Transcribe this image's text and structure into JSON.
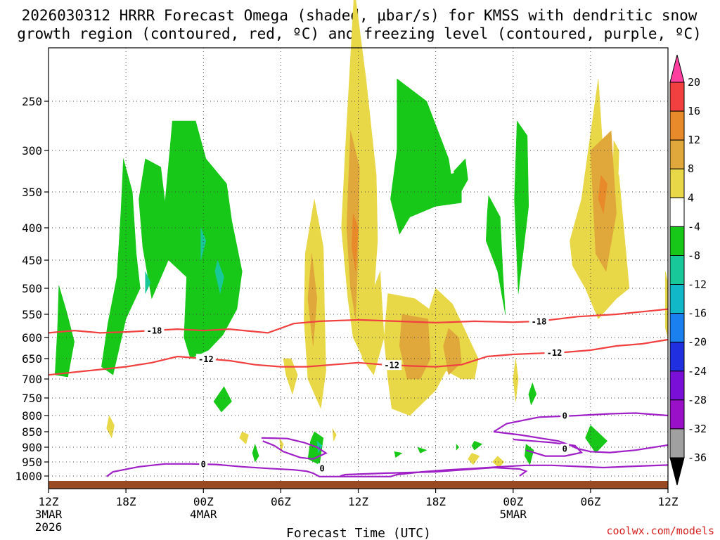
{
  "chart_data": {
    "type": "heatmap",
    "title_line1": "2026030312 HRRR Forecast Omega (shaded, μbar/s) for KMSS with dendritic snow",
    "title_line2": "growth region (contoured, red, ºC) and freezing level (contoured, purple, ºC)",
    "xlabel": "Forecast Time (UTC)",
    "credit": "coolwx.com/models",
    "x_range_hours": [
      0,
      48
    ],
    "x_ticks": [
      {
        "hour": 0,
        "label": "12Z",
        "date": "3MAR",
        "year": "2026"
      },
      {
        "hour": 6,
        "label": "18Z"
      },
      {
        "hour": 12,
        "label": "00Z",
        "date": "4MAR"
      },
      {
        "hour": 18,
        "label": "06Z"
      },
      {
        "hour": 24,
        "label": "12Z"
      },
      {
        "hour": 30,
        "label": "18Z"
      },
      {
        "hour": 36,
        "label": "00Z",
        "date": "5MAR"
      },
      {
        "hour": 42,
        "label": "06Z"
      },
      {
        "hour": 48,
        "label": "12Z"
      }
    ],
    "y_axis": "pressure (mb), inverted",
    "y_range_mb": [
      1030,
      150
    ],
    "y_ticks": [
      250,
      300,
      350,
      400,
      450,
      500,
      550,
      600,
      650,
      700,
      750,
      800,
      850,
      900,
      950,
      1000
    ],
    "colorbar": {
      "levels": [
        20,
        16,
        12,
        8,
        4,
        -4,
        -8,
        -12,
        -16,
        -20,
        -24,
        -28,
        -32,
        -36
      ],
      "colors": [
        "#ff3fa0",
        "#f24040",
        "#e88a2a",
        "#e0a83a",
        "#e8d848",
        "#ffffff",
        "#18c818",
        "#18c898",
        "#10b8c8",
        "#1a80f0",
        "#2030e0",
        "#7a10d8",
        "#9a10c8",
        "#a0a0a0",
        "#000000"
      ]
    },
    "series": [
      {
        "name": "-18C isotherm (DGZ top)",
        "color": "#f04040",
        "points": [
          [
            0,
            590
          ],
          [
            2,
            585
          ],
          [
            4,
            590
          ],
          [
            6,
            588
          ],
          [
            8,
            585
          ],
          [
            10,
            582
          ],
          [
            12,
            585
          ],
          [
            14,
            582
          ],
          [
            17,
            590
          ],
          [
            19,
            570
          ],
          [
            21,
            565
          ],
          [
            24,
            562
          ],
          [
            27,
            565
          ],
          [
            30,
            568
          ],
          [
            33,
            565
          ],
          [
            36,
            567
          ],
          [
            38,
            565
          ],
          [
            41,
            555
          ],
          [
            44,
            550
          ],
          [
            46,
            545
          ],
          [
            48,
            540
          ]
        ],
        "labels": [
          {
            "hour": 8.2,
            "text": "-18"
          },
          {
            "hour": 38,
            "text": "-18"
          }
        ]
      },
      {
        "name": "-12C isotherm (DGZ bottom)",
        "color": "#f04040",
        "points": [
          [
            0,
            690
          ],
          [
            3,
            680
          ],
          [
            6,
            670
          ],
          [
            8,
            660
          ],
          [
            10,
            645
          ],
          [
            12,
            650
          ],
          [
            14,
            655
          ],
          [
            16,
            665
          ],
          [
            18,
            670
          ],
          [
            20,
            670
          ],
          [
            22,
            665
          ],
          [
            24,
            660
          ],
          [
            26,
            665
          ],
          [
            28,
            668
          ],
          [
            30,
            670
          ],
          [
            32,
            665
          ],
          [
            34,
            645
          ],
          [
            36,
            640
          ],
          [
            40,
            635
          ],
          [
            42,
            630
          ],
          [
            44,
            620
          ],
          [
            46,
            615
          ],
          [
            48,
            605
          ]
        ],
        "labels": [
          {
            "hour": 12.2,
            "text": "-12"
          },
          {
            "hour": 26.6,
            "text": "-12"
          },
          {
            "hour": 39.2,
            "text": "-12"
          }
        ]
      },
      {
        "name": "0C freezing level",
        "color": "#a020c8",
        "points": [
          [
            4.5,
            1002
          ],
          [
            5,
            985
          ],
          [
            7,
            967
          ],
          [
            9,
            957
          ],
          [
            11,
            957
          ],
          [
            13,
            959
          ],
          [
            15,
            967
          ],
          [
            17,
            973
          ],
          [
            19,
            978
          ],
          [
            20,
            983
          ],
          [
            20.5,
            990
          ],
          [
            21,
            1002
          ],
          [
            26.5,
            1002
          ],
          [
            27,
            995
          ],
          [
            29,
            985
          ],
          [
            31,
            978
          ],
          [
            33,
            973
          ],
          [
            35,
            967
          ],
          [
            37,
            962
          ],
          [
            39,
            962
          ],
          [
            41,
            966
          ],
          [
            43,
            970
          ],
          [
            45,
            966
          ],
          [
            48,
            961
          ]
        ],
        "labels": [
          {
            "hour": 12,
            "text": "0"
          },
          {
            "hour": 21.2,
            "text": "0"
          },
          {
            "hour": 40,
            "text": "0"
          },
          {
            "hour": 40,
            "text": "0"
          }
        ]
      }
    ]
  }
}
